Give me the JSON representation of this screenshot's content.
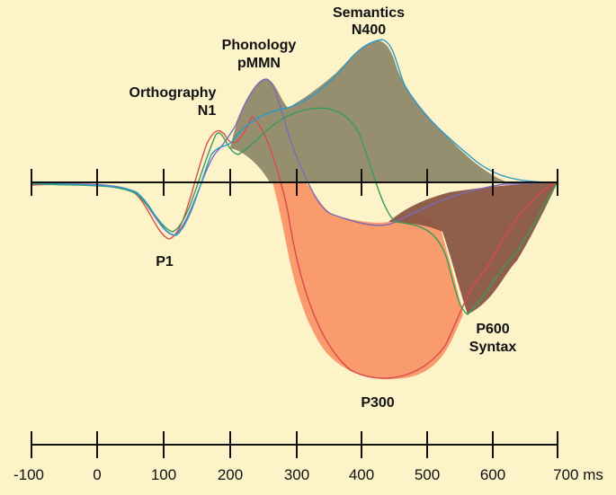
{
  "labels": [
    {
      "lines": [
        "Semantics",
        "N400"
      ]
    },
    {
      "lines": [
        "Phonology",
        "pMMN"
      ]
    },
    {
      "lines": [
        "Orthography",
        "N1"
      ]
    },
    {
      "lines": [
        "P1"
      ]
    },
    {
      "lines": [
        "P600",
        "Syntax"
      ]
    },
    {
      "lines": [
        "P300"
      ]
    }
  ],
  "axis": {
    "tick_labels": [
      "-100",
      "0",
      "100",
      "200",
      "300",
      "400",
      "500",
      "600",
      "700 ms"
    ]
  }
}
